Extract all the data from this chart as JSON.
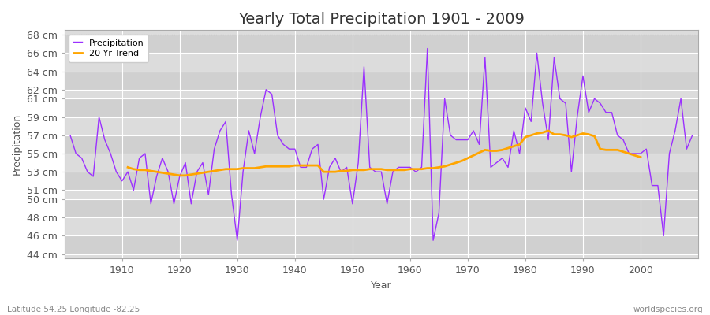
{
  "title": "Yearly Total Precipitation 1901 - 2009",
  "xlabel": "Year",
  "ylabel": "Precipitation",
  "footnote_left": "Latitude 54.25 Longitude -82.25",
  "footnote_right": "worldspecies.org",
  "legend_labels": [
    "Precipitation",
    "20 Yr Trend"
  ],
  "precip_color": "#9B30FF",
  "trend_color": "#FFA500",
  "background_color": "#FFFFFF",
  "plot_bg_color": "#DCDCDC",
  "grid_color": "#FFFFFF",
  "band_color_dark": "#D0D0D0",
  "band_color_light": "#DCDCDC",
  "years": [
    1901,
    1902,
    1903,
    1904,
    1905,
    1906,
    1907,
    1908,
    1909,
    1910,
    1911,
    1912,
    1913,
    1914,
    1915,
    1916,
    1917,
    1918,
    1919,
    1920,
    1921,
    1922,
    1923,
    1924,
    1925,
    1926,
    1927,
    1928,
    1929,
    1930,
    1931,
    1932,
    1933,
    1934,
    1935,
    1936,
    1937,
    1938,
    1939,
    1940,
    1941,
    1942,
    1943,
    1944,
    1945,
    1946,
    1947,
    1948,
    1949,
    1950,
    1951,
    1952,
    1953,
    1954,
    1955,
    1956,
    1957,
    1958,
    1959,
    1960,
    1961,
    1962,
    1963,
    1964,
    1965,
    1966,
    1967,
    1968,
    1969,
    1970,
    1971,
    1972,
    1973,
    1974,
    1975,
    1976,
    1977,
    1978,
    1979,
    1980,
    1981,
    1982,
    1983,
    1984,
    1985,
    1986,
    1987,
    1988,
    1989,
    1990,
    1991,
    1992,
    1993,
    1994,
    1995,
    1996,
    1997,
    1998,
    1999,
    2000,
    2001,
    2002,
    2003,
    2004,
    2005,
    2006,
    2007,
    2008,
    2009
  ],
  "precipitation": [
    57.0,
    55.0,
    54.5,
    53.0,
    52.5,
    59.0,
    56.5,
    55.0,
    53.0,
    52.0,
    53.0,
    51.0,
    54.5,
    55.0,
    49.5,
    52.5,
    54.5,
    53.0,
    49.5,
    52.5,
    54.0,
    49.5,
    53.0,
    54.0,
    50.5,
    55.5,
    57.5,
    58.5,
    50.5,
    45.5,
    53.0,
    57.5,
    55.0,
    59.0,
    62.0,
    61.5,
    57.0,
    56.0,
    55.5,
    55.5,
    53.5,
    53.5,
    55.5,
    56.0,
    50.0,
    53.5,
    54.5,
    53.0,
    53.5,
    49.5,
    54.0,
    64.5,
    53.5,
    53.0,
    53.0,
    49.5,
    53.0,
    53.5,
    53.5,
    53.5,
    53.0,
    53.5,
    66.5,
    45.5,
    48.5,
    61.0,
    57.0,
    56.5,
    56.5,
    56.5,
    57.5,
    56.0,
    65.5,
    53.5,
    54.0,
    54.5,
    53.5,
    57.5,
    55.0,
    60.0,
    58.5,
    66.0,
    60.5,
    56.5,
    65.5,
    61.0,
    60.5,
    53.0,
    59.0,
    63.5,
    59.5,
    61.0,
    60.5,
    59.5,
    59.5,
    57.0,
    56.5,
    55.0,
    55.0,
    55.0,
    55.5,
    51.5,
    51.5,
    46.0,
    55.0,
    57.5,
    61.0,
    55.5,
    57.0
  ],
  "trend": [
    null,
    null,
    null,
    null,
    null,
    null,
    null,
    null,
    null,
    null,
    53.5,
    53.3,
    53.2,
    53.2,
    53.1,
    53.0,
    52.9,
    52.8,
    52.7,
    52.6,
    52.6,
    52.7,
    52.8,
    52.9,
    53.0,
    53.1,
    53.2,
    53.3,
    53.3,
    53.3,
    53.4,
    53.4,
    53.4,
    53.5,
    53.6,
    53.6,
    53.6,
    53.6,
    53.6,
    53.7,
    53.7,
    53.7,
    53.7,
    53.7,
    53.0,
    53.0,
    53.0,
    53.1,
    53.1,
    53.2,
    53.2,
    53.2,
    53.3,
    53.3,
    53.3,
    53.2,
    53.2,
    53.2,
    53.2,
    53.3,
    53.3,
    53.3,
    53.4,
    53.4,
    53.5,
    53.6,
    53.8,
    54.0,
    54.2,
    54.5,
    54.8,
    55.1,
    55.4,
    55.3,
    55.3,
    55.4,
    55.6,
    55.8,
    56.0,
    56.8,
    57.0,
    57.2,
    57.3,
    57.5,
    57.1,
    57.1,
    57.0,
    56.8,
    57.0,
    57.2,
    57.1,
    56.9,
    55.5,
    55.4,
    55.4,
    55.4,
    55.2,
    55.0,
    54.8,
    54.6,
    null,
    null,
    null,
    null,
    null,
    null,
    null,
    null,
    null
  ],
  "yticks": [
    44,
    46,
    48,
    50,
    51,
    53,
    55,
    57,
    59,
    61,
    62,
    64,
    66,
    68
  ],
  "ylim": [
    43.5,
    68.5
  ],
  "xlim": [
    1900,
    2010
  ],
  "title_fontsize": 14,
  "axis_label_fontsize": 9,
  "tick_fontsize": 9,
  "footnote_fontsize": 7.5
}
